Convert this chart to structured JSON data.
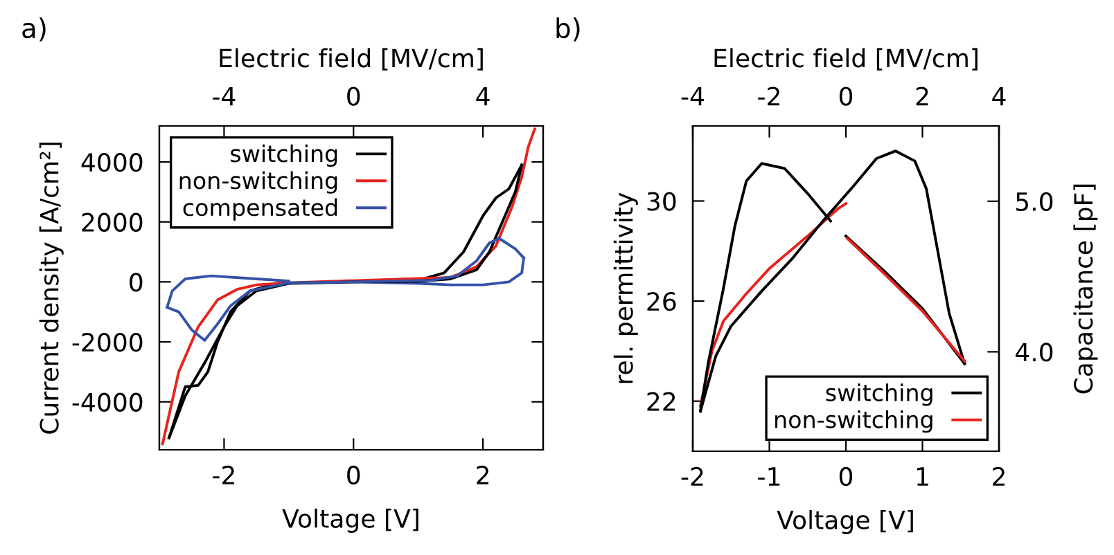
{
  "chart_data": [
    {
      "type": "line",
      "annotations": [
        "a)"
      ],
      "xlabel": "Voltage [V]",
      "ylabel": "Current density [A/cm²]",
      "x2label": "Electric field [MV/cm]",
      "xlim": [
        -3,
        2.93
      ],
      "xticks": [
        -2,
        0,
        2
      ],
      "x2lim": [
        -6,
        5.86
      ],
      "x2ticks": [
        -4,
        0,
        4
      ],
      "ylim": [
        -5600,
        5200
      ],
      "yticks": [
        -4000,
        -2000,
        0,
        2000,
        4000
      ],
      "legend": "top left",
      "series": [
        {
          "name": "switching",
          "color": "#000000",
          "x": [
            -2.85,
            -2.6,
            -2.4,
            -2.25,
            -2.1,
            -1.9,
            -1.6,
            -1.2,
            0,
            1,
            1.4,
            1.7,
            2.0,
            2.2,
            2.4,
            2.6
          ],
          "values": [
            -5200,
            -3500,
            -3450,
            -3000,
            -2000,
            -1000,
            -300,
            -50,
            0,
            50,
            300,
            1000,
            2200,
            2800,
            3100,
            3900
          ]
        },
        {
          "name": "non-switching",
          "color": "#e8231e",
          "x": [
            -2.95,
            -2.7,
            -2.4,
            -2.1,
            -1.8,
            -1.5,
            -1,
            1.5,
            1.9,
            2.2,
            2.45,
            2.6,
            2.7,
            2.8
          ],
          "values": [
            -5400,
            -3000,
            -1500,
            -600,
            -250,
            -100,
            -30,
            150,
            500,
            1200,
            2500,
            3500,
            4500,
            5100
          ]
        },
        {
          "name": "compensated",
          "color": "#3552a8",
          "x": [
            0,
            1,
            1.5,
            2.0,
            2.4,
            2.6,
            2.63
          ],
          "values": [
            0,
            -50,
            -100,
            -100,
            0,
            300,
            800
          ]
        },
        {
          "color": "#000000",
          "x": [
            2.6,
            2.5,
            2.3,
            2.1,
            1.9,
            1.5,
            1,
            0,
            -1,
            -1.5,
            -1.8,
            -2.0,
            -2.3,
            -2.6,
            -2.85
          ],
          "values": [
            3900,
            3000,
            2000,
            1000,
            400,
            100,
            20,
            0,
            -50,
            -300,
            -800,
            -1500,
            -2700,
            -3800,
            -5200
          ]
        },
        {
          "color": "#3552a8",
          "x": [
            2.63,
            2.5,
            2.25,
            2.1,
            1.9,
            1.6,
            1.2,
            0,
            -1,
            -1.6,
            -1.9,
            -2.1,
            -2.3,
            -2.5,
            -2.7,
            -2.88
          ],
          "values": [
            800,
            1100,
            1450,
            1300,
            700,
            200,
            50,
            0,
            -30,
            -300,
            -800,
            -1400,
            -1950,
            -1600,
            -1000,
            -850
          ]
        },
        {
          "color": "#3552a8",
          "x": [
            -2.88,
            -2.8,
            -2.6,
            -2.2,
            -1.5,
            -1
          ],
          "values": [
            -850,
            -300,
            100,
            200,
            100,
            30
          ]
        }
      ]
    },
    {
      "type": "line",
      "annotations": [
        "b)"
      ],
      "xlabel": "Voltage [V]",
      "ylabel": "rel. permittivity",
      "x2label": "Electric field [MV/cm]",
      "y2label": "Capacitance [pF]",
      "xlim": [
        -2,
        2
      ],
      "xticks": [
        -2,
        -1,
        0,
        1,
        2
      ],
      "x2lim": [
        -4,
        4
      ],
      "x2ticks": [
        -4,
        -2,
        0,
        2,
        4
      ],
      "ylim": [
        20,
        33
      ],
      "yticks": [
        22,
        26,
        30
      ],
      "y2lim": [
        3.34,
        5.5
      ],
      "y2ticks": [
        {
          "value": 4.0,
          "label": "4.0"
        },
        {
          "value": 5.0,
          "label": "5.0"
        }
      ],
      "legend": "bottom right",
      "series": [
        {
          "name": "switching",
          "color": "#000000",
          "x": [
            0,
            0.5,
            1,
            1.55
          ],
          "values": [
            28.6,
            27.2,
            25.7,
            23.5
          ]
        },
        {
          "name": "non-switching",
          "color": "#e8231e",
          "x": [
            -1.9,
            -1.75,
            -1.6,
            -1.3,
            -1,
            -0.5,
            -0.1,
            0
          ],
          "values": [
            21.8,
            24,
            25.2,
            26.3,
            27.3,
            28.6,
            29.7,
            29.9
          ]
        },
        {
          "color": "#000000",
          "x": [
            1.55,
            1.35,
            1.2,
            1.05,
            0.9,
            0.65,
            0.4,
            0.1,
            -0.3,
            -0.7,
            -1.1,
            -1.5,
            -1.7,
            -1.9
          ],
          "values": [
            23.5,
            25.5,
            28,
            30.5,
            31.6,
            32.0,
            31.7,
            30.6,
            29.2,
            27.7,
            26.4,
            25.0,
            23.8,
            21.6
          ]
        },
        {
          "color": "#000000",
          "x": [
            -1.9,
            -1.8,
            -1.6,
            -1.45,
            -1.3,
            -1.1,
            -0.8,
            -0.5,
            -0.2
          ],
          "values": [
            21.6,
            23.5,
            26.5,
            29,
            30.8,
            31.5,
            31.3,
            30.3,
            29.2
          ]
        },
        {
          "color": "#e8231e",
          "x": [
            0.02,
            0.5,
            1,
            1.55
          ],
          "values": [
            28.5,
            27.1,
            25.6,
            23.6
          ]
        }
      ]
    }
  ]
}
